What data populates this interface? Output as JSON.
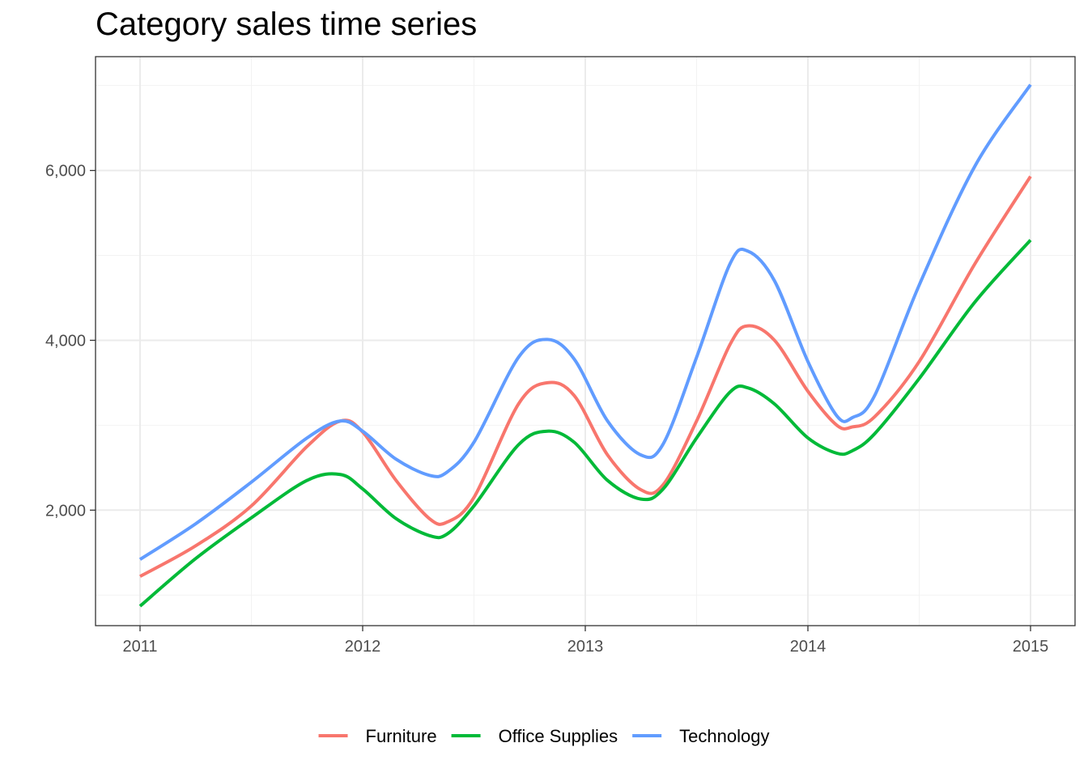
{
  "chart_data": {
    "type": "line",
    "title": "Category sales time series",
    "xlabel": "",
    "ylabel": "",
    "xlim": [
      2010.8,
      2015.2
    ],
    "ylim": [
      640,
      7340
    ],
    "x_ticks": [
      2011,
      2012,
      2013,
      2014,
      2015
    ],
    "x_tick_labels": [
      "2011",
      "2012",
      "2013",
      "2014",
      "2015"
    ],
    "y_ticks": [
      2000,
      4000,
      6000
    ],
    "y_tick_labels": [
      "2,000",
      "4,000",
      "6,000"
    ],
    "grid": true,
    "legend_position": "bottom",
    "x": [
      2011.0,
      2011.25,
      2011.5,
      2011.75,
      2011.9,
      2012.0,
      2012.15,
      2012.3,
      2012.38,
      2012.5,
      2012.7,
      2012.83,
      2012.95,
      2013.1,
      2013.25,
      2013.35,
      2013.5,
      2013.65,
      2013.73,
      2013.85,
      2014.0,
      2014.13,
      2014.2,
      2014.3,
      2014.5,
      2014.75,
      2015.0
    ],
    "series": [
      {
        "name": "Furniture",
        "color": "#f8766d",
        "values": [
          1220,
          1580,
          2050,
          2750,
          3050,
          2920,
          2350,
          1900,
          1860,
          2150,
          3250,
          3500,
          3350,
          2650,
          2240,
          2300,
          3050,
          3950,
          4170,
          4000,
          3400,
          3000,
          2980,
          3100,
          3750,
          4900,
          5930
        ]
      },
      {
        "name": "Office Supplies",
        "color": "#00ba38",
        "values": [
          870,
          1430,
          1910,
          2350,
          2420,
          2250,
          1900,
          1700,
          1720,
          2050,
          2770,
          2930,
          2800,
          2350,
          2130,
          2250,
          2850,
          3390,
          3440,
          3250,
          2850,
          2670,
          2700,
          2900,
          3550,
          4450,
          5180
        ]
      },
      {
        "name": "Technology",
        "color": "#619cff",
        "values": [
          1420,
          1840,
          2330,
          2850,
          3050,
          2930,
          2600,
          2410,
          2450,
          2800,
          3800,
          4010,
          3780,
          3050,
          2650,
          2780,
          3800,
          4900,
          5050,
          4700,
          3750,
          3110,
          3090,
          3350,
          4650,
          6050,
          7010
        ]
      }
    ]
  }
}
